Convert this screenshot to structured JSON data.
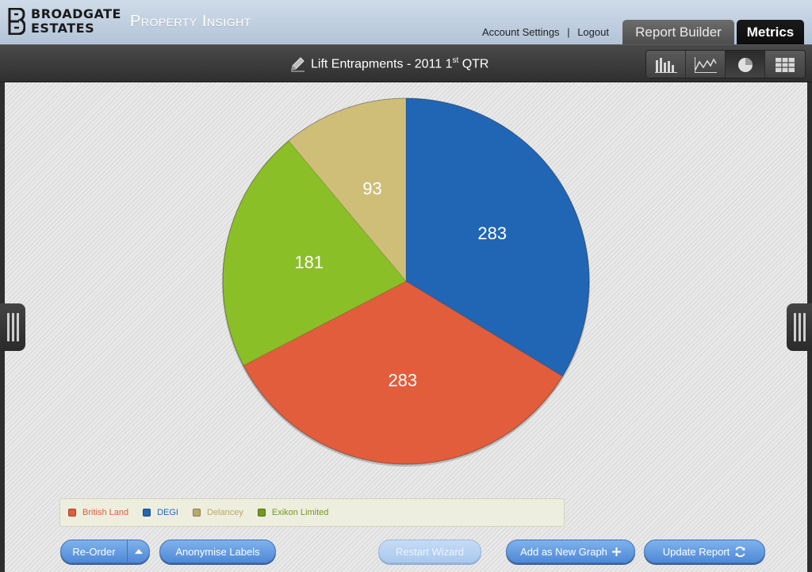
{
  "brand": {
    "line1": "BROADGATE",
    "line2": "ESTATES"
  },
  "app": {
    "name": "Property Insight"
  },
  "user_links": {
    "account": "Account Settings",
    "separator": "|",
    "logout": "Logout"
  },
  "tabs": [
    {
      "label": "Report Builder",
      "active": false
    },
    {
      "label": "Metrics",
      "active": true
    }
  ],
  "report": {
    "title": "Lift Entrapments - 2011 1",
    "title_sup": "st",
    "title_end": " QTR"
  },
  "view_modes": [
    {
      "icon": "bar-chart-icon",
      "active": false
    },
    {
      "icon": "line-chart-icon",
      "active": false
    },
    {
      "icon": "pie-chart-icon",
      "active": true
    },
    {
      "icon": "table-icon",
      "active": false
    }
  ],
  "chart_data": {
    "type": "pie",
    "slices": [
      {
        "label": "DEGI",
        "value": 283,
        "color": "#2166b4"
      },
      {
        "label": "British Land",
        "value": 283,
        "color": "#e15d3b"
      },
      {
        "label": "Exikon Limited",
        "value": 181,
        "color": "#8bbf27"
      },
      {
        "label": "Delancey",
        "value": 93,
        "color": "#cfbe78"
      }
    ]
  },
  "legend": [
    {
      "label": "British Land",
      "color": "#e15d3b"
    },
    {
      "label": "DEGI",
      "color": "#2166b4"
    },
    {
      "label": "Delancey",
      "color": "#b8a86a"
    },
    {
      "label": "Exikon Limited",
      "color": "#6f9a1f"
    }
  ],
  "buttons": {
    "reorder": "Re-Order",
    "anonymise": "Anonymise Labels",
    "restart": "Restart Wizard",
    "add_graph": "Add as New Graph",
    "update": "Update Report"
  }
}
